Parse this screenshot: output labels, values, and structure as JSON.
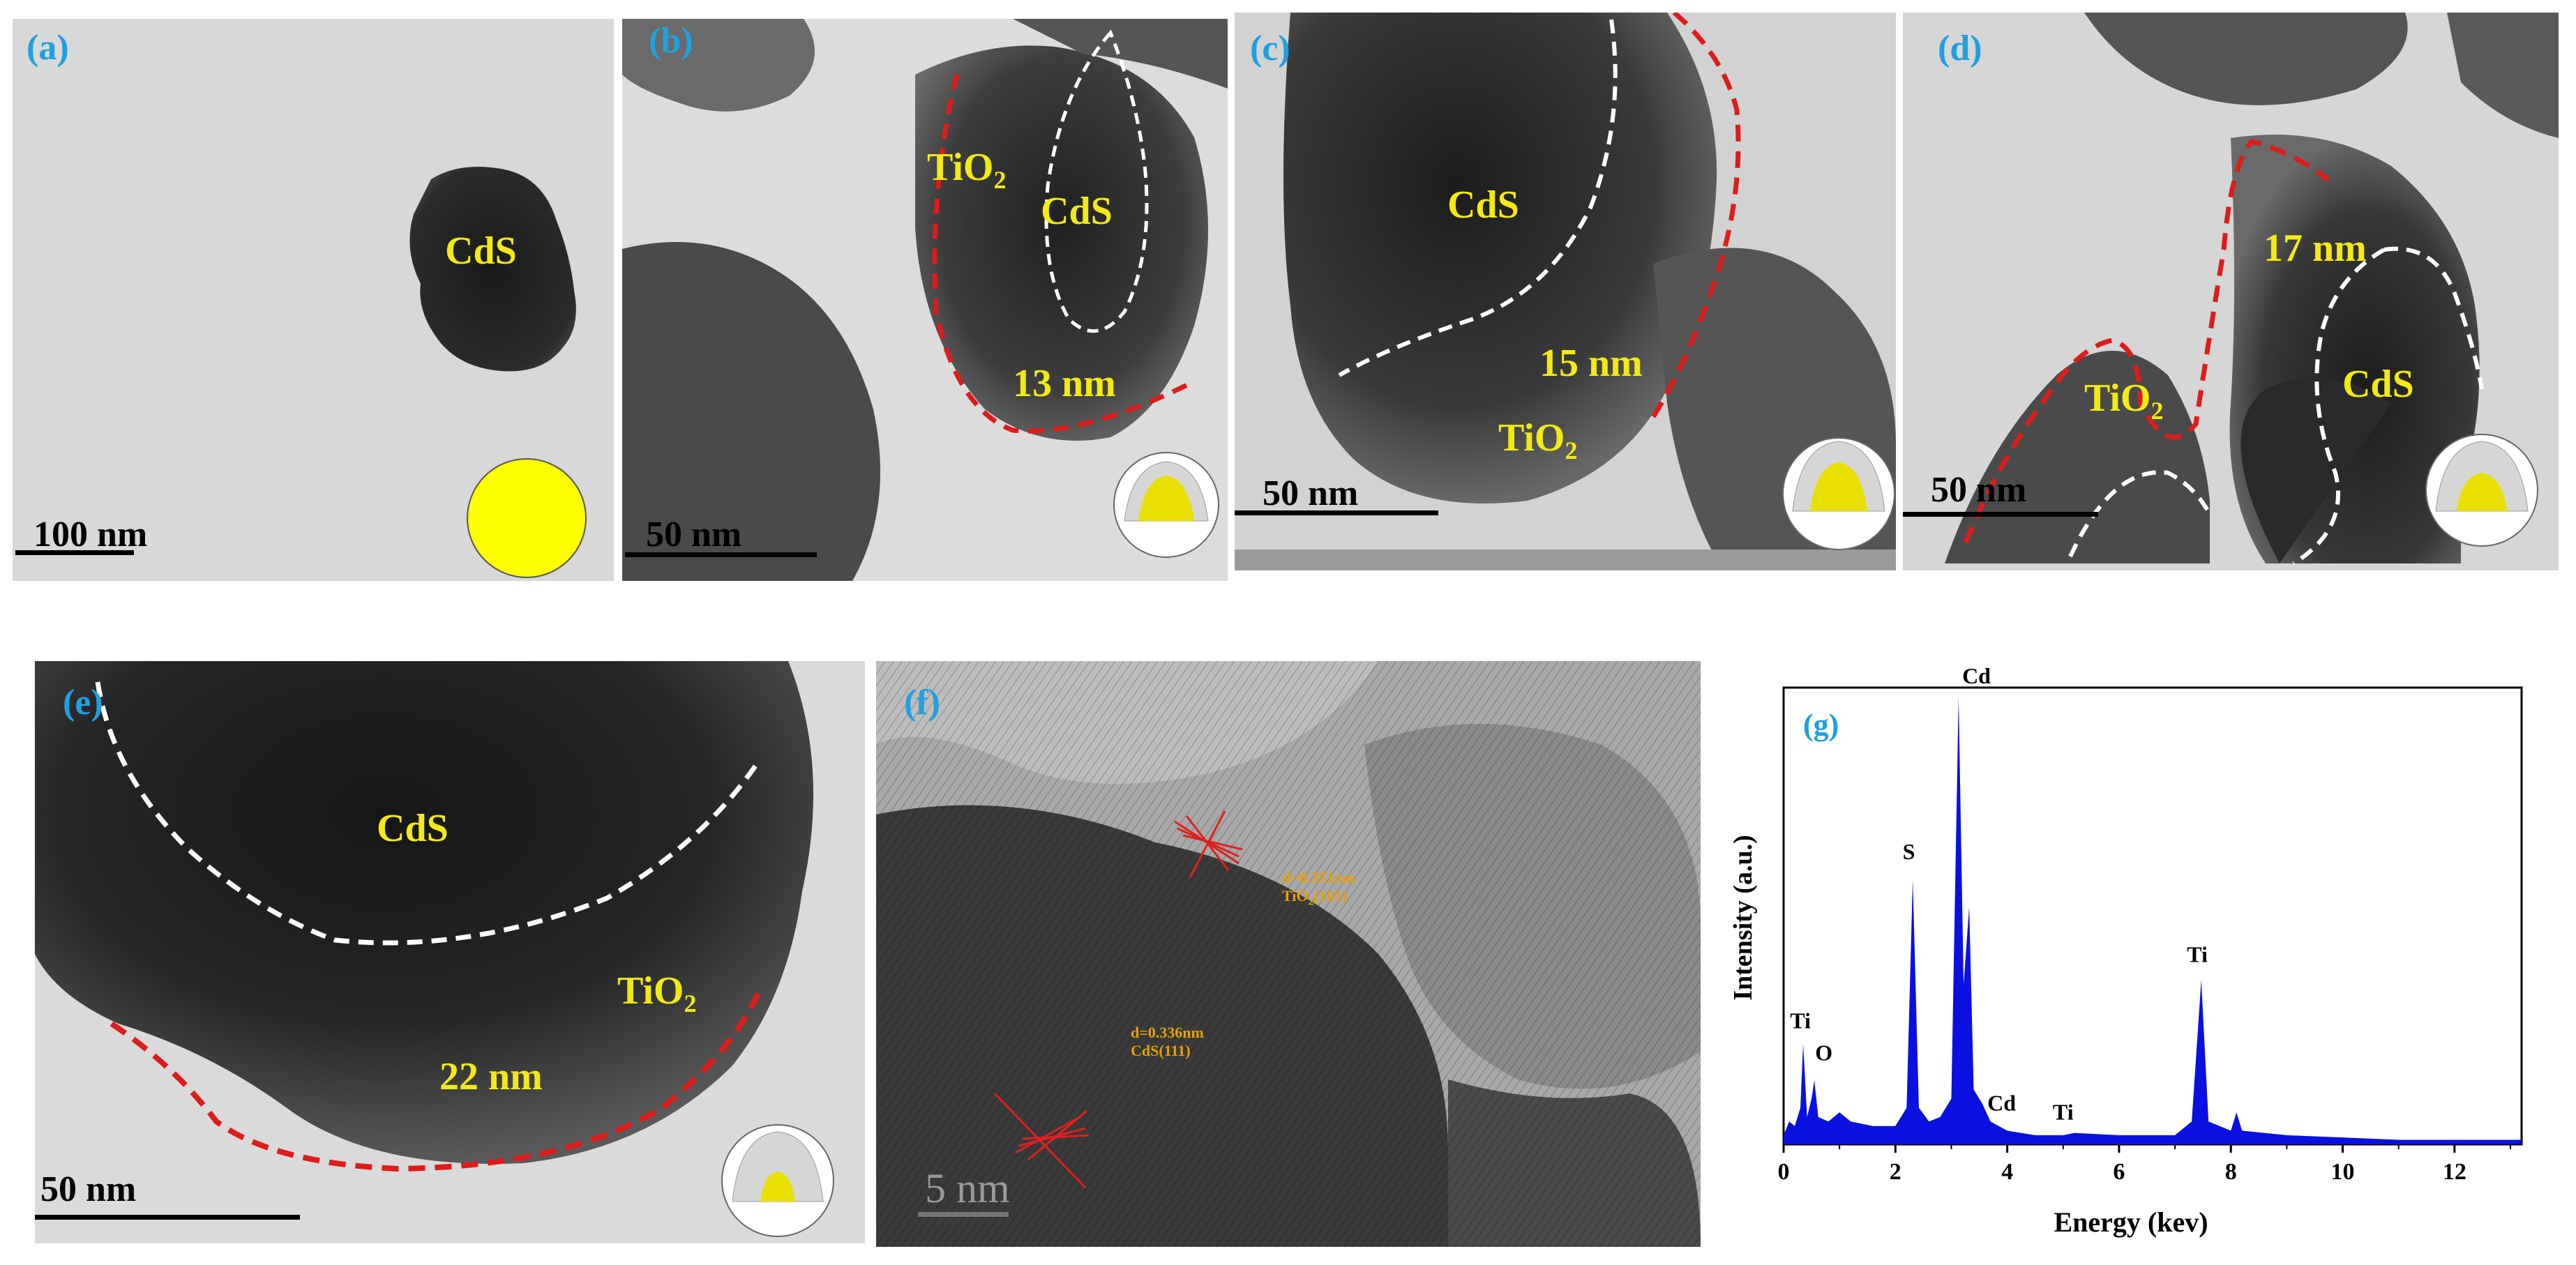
{
  "figure": {
    "panels": [
      {
        "id": "a",
        "label": "(a)",
        "material_label": "CdS",
        "scale_bar": "100 nm"
      },
      {
        "id": "b",
        "label": "(b)",
        "core_label": "CdS",
        "shell_label": "TiO",
        "shell_sub": "2",
        "thickness": "13 nm",
        "scale_bar": "50 nm"
      },
      {
        "id": "c",
        "label": "(c)",
        "core_label": "CdS",
        "shell_label": "TiO",
        "shell_sub": "2",
        "thickness": "15 nm",
        "scale_bar": "50 nm"
      },
      {
        "id": "d",
        "label": "(d)",
        "core_label": "CdS",
        "shell_label": "TiO",
        "shell_sub": "2",
        "thickness": "17 nm",
        "scale_bar": "50 nm"
      },
      {
        "id": "e",
        "label": "(e)",
        "core_label": "CdS",
        "shell_label": "TiO",
        "shell_sub": "2",
        "thickness": "22 nm",
        "scale_bar": "50 nm"
      },
      {
        "id": "f",
        "label": "(f)",
        "fringe1_line1": "d=0.351nm",
        "fringe1_line2_pre": "TiO",
        "fringe1_line2_sub": "2",
        "fringe1_line2_post": "(101)",
        "fringe2_line1": "d=0.336nm",
        "fringe2_line2": "CdS(111)",
        "scale_bar": "5  nm"
      }
    ],
    "colors": {
      "label_blue": "#1fa0e0",
      "label_yellow": "#f2ea12",
      "shell_red": "#dd1c1c",
      "core_white": "#ffffff",
      "eds_blue": "#0a10e0",
      "fringe_orange": "#e8a000"
    }
  },
  "chart_data": {
    "type": "line",
    "title": "(g)",
    "xlabel": "Energy (kev)",
    "ylabel": "Intensity (a.u.)",
    "xlim": [
      0,
      13.2
    ],
    "ylim": [
      0,
      1.0
    ],
    "xticks": [
      "0",
      "2",
      "4",
      "6",
      "8",
      "10",
      "12"
    ],
    "series": [
      {
        "values": [
          [
            0.0,
            0.02
          ],
          [
            0.1,
            0.05
          ],
          [
            0.2,
            0.04
          ],
          [
            0.3,
            0.08
          ],
          [
            0.35,
            0.22
          ],
          [
            0.42,
            0.06
          ],
          [
            0.5,
            0.1
          ],
          [
            0.55,
            0.14
          ],
          [
            0.62,
            0.06
          ],
          [
            0.8,
            0.05
          ],
          [
            1.0,
            0.07
          ],
          [
            1.2,
            0.05
          ],
          [
            1.6,
            0.04
          ],
          [
            2.0,
            0.04
          ],
          [
            2.2,
            0.08
          ],
          [
            2.31,
            0.58
          ],
          [
            2.42,
            0.08
          ],
          [
            2.6,
            0.05
          ],
          [
            2.8,
            0.06
          ],
          [
            3.0,
            0.1
          ],
          [
            3.13,
            0.98
          ],
          [
            3.22,
            0.35
          ],
          [
            3.32,
            0.52
          ],
          [
            3.4,
            0.12
          ],
          [
            3.55,
            0.09
          ],
          [
            3.7,
            0.05
          ],
          [
            4.0,
            0.03
          ],
          [
            4.5,
            0.02
          ],
          [
            5.0,
            0.02
          ],
          [
            5.2,
            0.025
          ],
          [
            6.0,
            0.02
          ],
          [
            7.0,
            0.02
          ],
          [
            7.3,
            0.05
          ],
          [
            7.47,
            0.36
          ],
          [
            7.6,
            0.05
          ],
          [
            8.0,
            0.03
          ],
          [
            8.1,
            0.07
          ],
          [
            8.2,
            0.03
          ],
          [
            9.0,
            0.02
          ],
          [
            10.0,
            0.015
          ],
          [
            11.0,
            0.01
          ],
          [
            12.0,
            0.01
          ],
          [
            13.2,
            0.01
          ]
        ]
      }
    ],
    "annotations": [
      {
        "text": "Ti",
        "x": 0.3,
        "y": 0.245
      },
      {
        "text": "O",
        "x": 0.72,
        "y": 0.175
      },
      {
        "text": "S",
        "x": 2.24,
        "y": 0.615
      },
      {
        "text": "Cd",
        "x": 3.45,
        "y": 1.0
      },
      {
        "text": "Cd",
        "x": 3.9,
        "y": 0.065
      },
      {
        "text": "Ti",
        "x": 5.0,
        "y": 0.045
      },
      {
        "text": "Ti",
        "x": 7.4,
        "y": 0.39
      }
    ]
  }
}
